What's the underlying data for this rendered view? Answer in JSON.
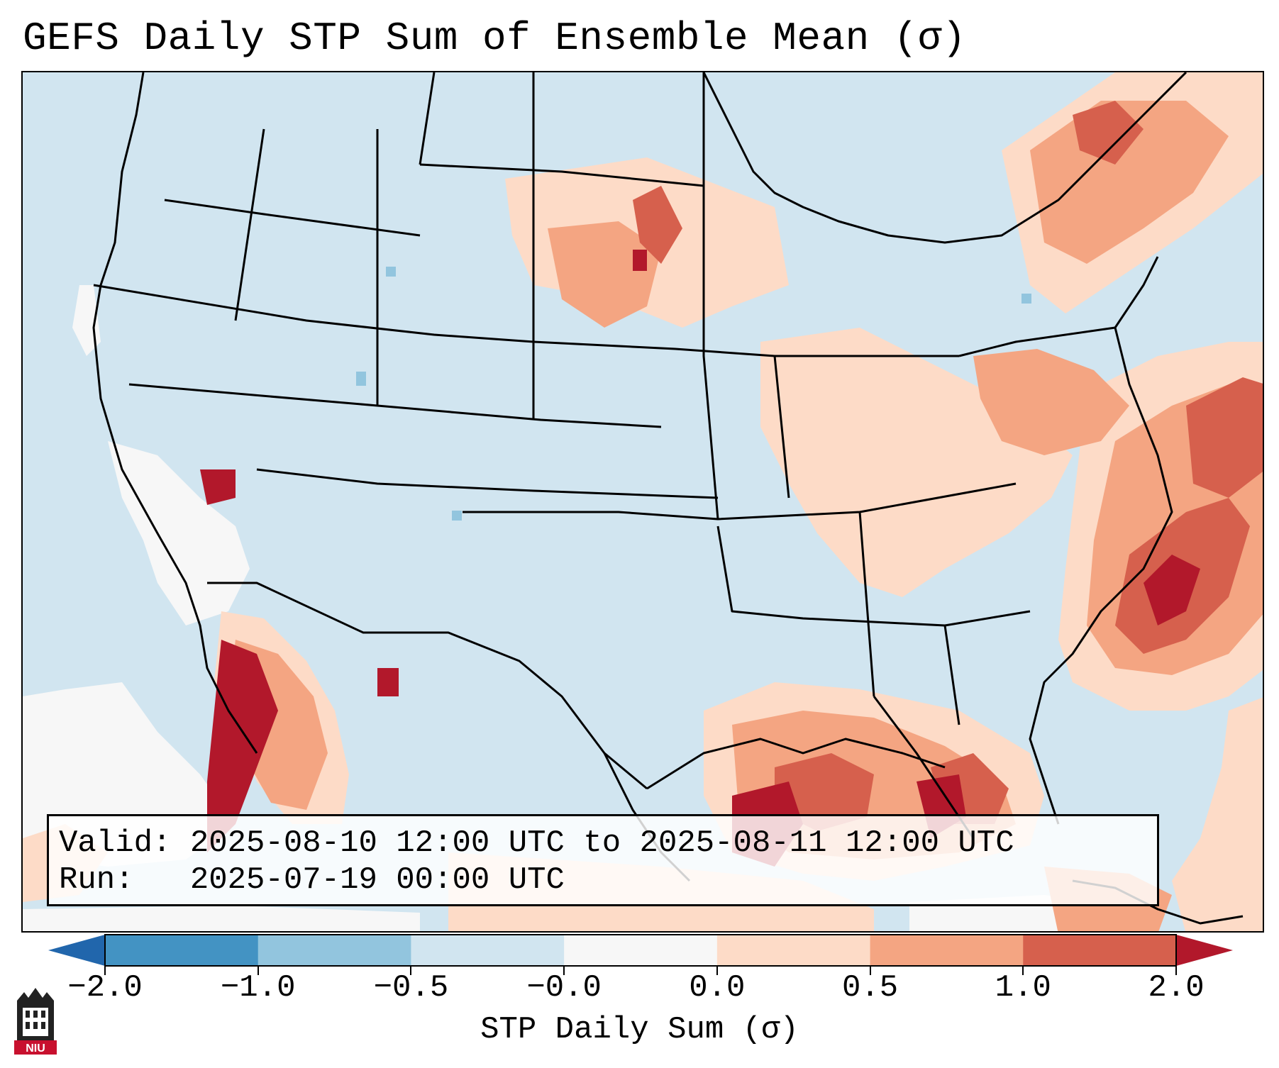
{
  "title": "GEFS Daily STP Sum of Ensemble Mean (σ)",
  "info": {
    "valid_line": "Valid: 2025-08-10 12:00 UTC to 2025-08-11 12:00 UTC",
    "run_line": "Run:   2025-07-19 00:00 UTC"
  },
  "colorbar": {
    "label": "STP Daily Sum (σ)",
    "tick_labels": [
      "−2.0",
      "−1.0",
      "−0.5",
      "−0.0",
      "0.0",
      "0.5",
      "1.0",
      "2.0"
    ],
    "boundaries": [
      -2.0,
      -1.0,
      -0.5,
      -0.0,
      0.0,
      0.5,
      1.0,
      2.0
    ],
    "colors": [
      "#4393c3",
      "#92c5de",
      "#d1e5f0",
      "#f7f7f7",
      "#fddbc7",
      "#f4a582",
      "#d6604d"
    ],
    "extend_min_color": "#2166ac",
    "extend_max_color": "#b2182b"
  },
  "logo": {
    "text": "NIU",
    "icon": "niu-university-logo"
  }
}
